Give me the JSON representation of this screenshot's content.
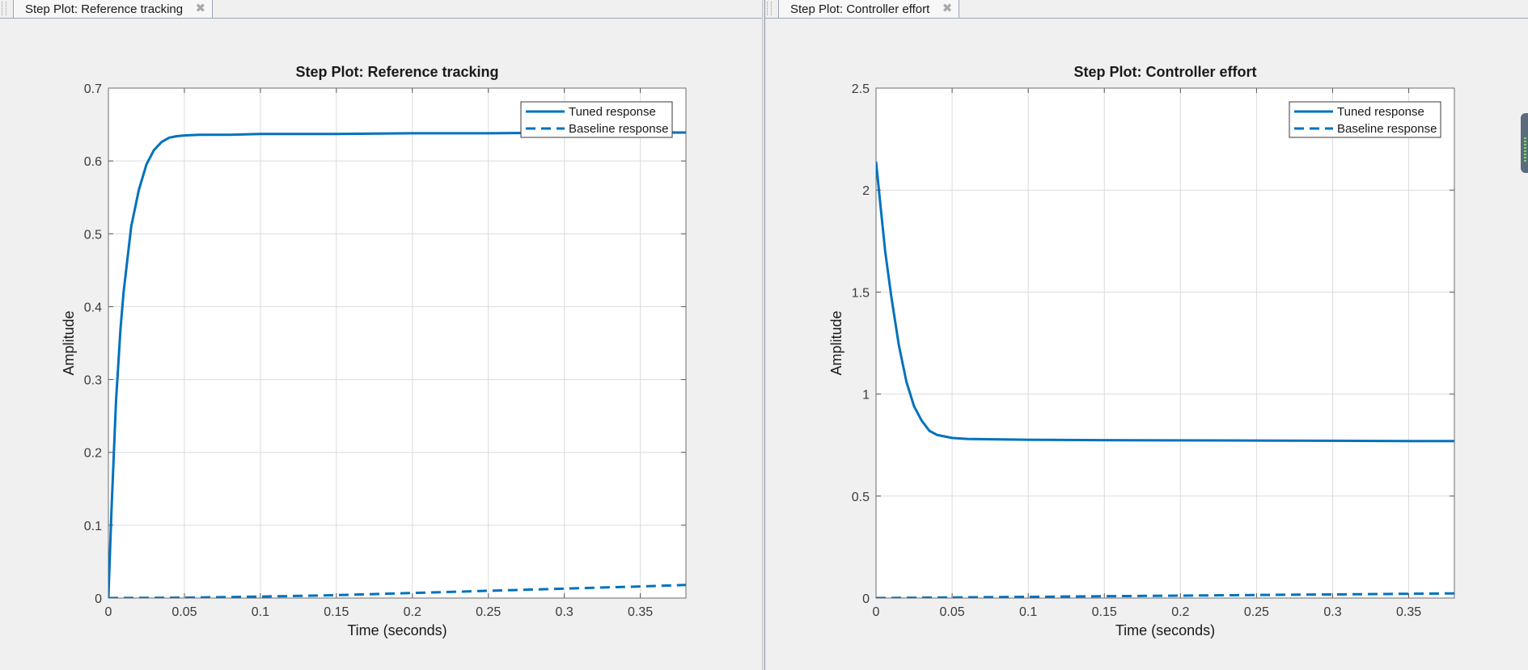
{
  "left_tab": {
    "label": "Step Plot: Reference tracking",
    "close_icon": "close-icon"
  },
  "right_tab": {
    "label": "Step Plot: Controller effort",
    "close_icon": "close-icon"
  },
  "colors": {
    "series": "#0072bd",
    "grid": "#dcdcdc",
    "background": "#f0f0f0"
  },
  "chart_data": [
    {
      "type": "line",
      "title": "Step Plot: Reference tracking",
      "xlabel": "Time (seconds)",
      "ylabel": "Amplitude",
      "xlim": [
        0,
        0.38
      ],
      "ylim": [
        0,
        0.7
      ],
      "xticks": [
        "0",
        "0.05",
        "0.1",
        "0.15",
        "0.2",
        "0.25",
        "0.3",
        "0.35"
      ],
      "yticks": [
        "0",
        "0.1",
        "0.2",
        "0.3",
        "0.4",
        "0.5",
        "0.6",
        "0.7"
      ],
      "grid": true,
      "legend_position": "top-right",
      "series": [
        {
          "name": "Tuned response",
          "style": "solid",
          "x": [
            0,
            0.002,
            0.005,
            0.008,
            0.01,
            0.015,
            0.02,
            0.025,
            0.03,
            0.035,
            0.04,
            0.045,
            0.05,
            0.06,
            0.08,
            0.1,
            0.15,
            0.2,
            0.25,
            0.3,
            0.35,
            0.38
          ],
          "y": [
            0,
            0.12,
            0.27,
            0.37,
            0.42,
            0.51,
            0.56,
            0.595,
            0.615,
            0.626,
            0.632,
            0.634,
            0.635,
            0.636,
            0.636,
            0.637,
            0.637,
            0.638,
            0.638,
            0.639,
            0.639,
            0.639
          ]
        },
        {
          "name": "Baseline response",
          "style": "dashed",
          "x": [
            0,
            0.05,
            0.1,
            0.15,
            0.2,
            0.25,
            0.3,
            0.35,
            0.38
          ],
          "y": [
            0,
            0.0005,
            0.002,
            0.004,
            0.007,
            0.01,
            0.013,
            0.016,
            0.018
          ]
        }
      ]
    },
    {
      "type": "line",
      "title": "Step Plot: Controller effort",
      "xlabel": "Time (seconds)",
      "ylabel": "Amplitude",
      "xlim": [
        0,
        0.38
      ],
      "ylim": [
        0,
        2.5
      ],
      "xticks": [
        "0",
        "0.05",
        "0.1",
        "0.15",
        "0.2",
        "0.25",
        "0.3",
        "0.35"
      ],
      "yticks": [
        "0",
        "0.5",
        "1",
        "1.5",
        "2",
        "2.5"
      ],
      "grid": true,
      "legend_position": "top-right",
      "series": [
        {
          "name": "Tuned response",
          "style": "solid",
          "x": [
            0,
            0.003,
            0.006,
            0.01,
            0.015,
            0.02,
            0.025,
            0.03,
            0.035,
            0.04,
            0.05,
            0.06,
            0.08,
            0.1,
            0.15,
            0.2,
            0.25,
            0.3,
            0.35,
            0.38
          ],
          "y": [
            2.14,
            1.92,
            1.7,
            1.48,
            1.24,
            1.06,
            0.94,
            0.87,
            0.82,
            0.8,
            0.785,
            0.78,
            0.778,
            0.776,
            0.774,
            0.773,
            0.772,
            0.771,
            0.77,
            0.77
          ]
        },
        {
          "name": "Baseline response",
          "style": "dashed",
          "x": [
            0,
            0.05,
            0.1,
            0.15,
            0.2,
            0.25,
            0.3,
            0.35,
            0.38
          ],
          "y": [
            0,
            0.003,
            0.006,
            0.009,
            0.012,
            0.015,
            0.018,
            0.021,
            0.023
          ]
        }
      ]
    }
  ]
}
